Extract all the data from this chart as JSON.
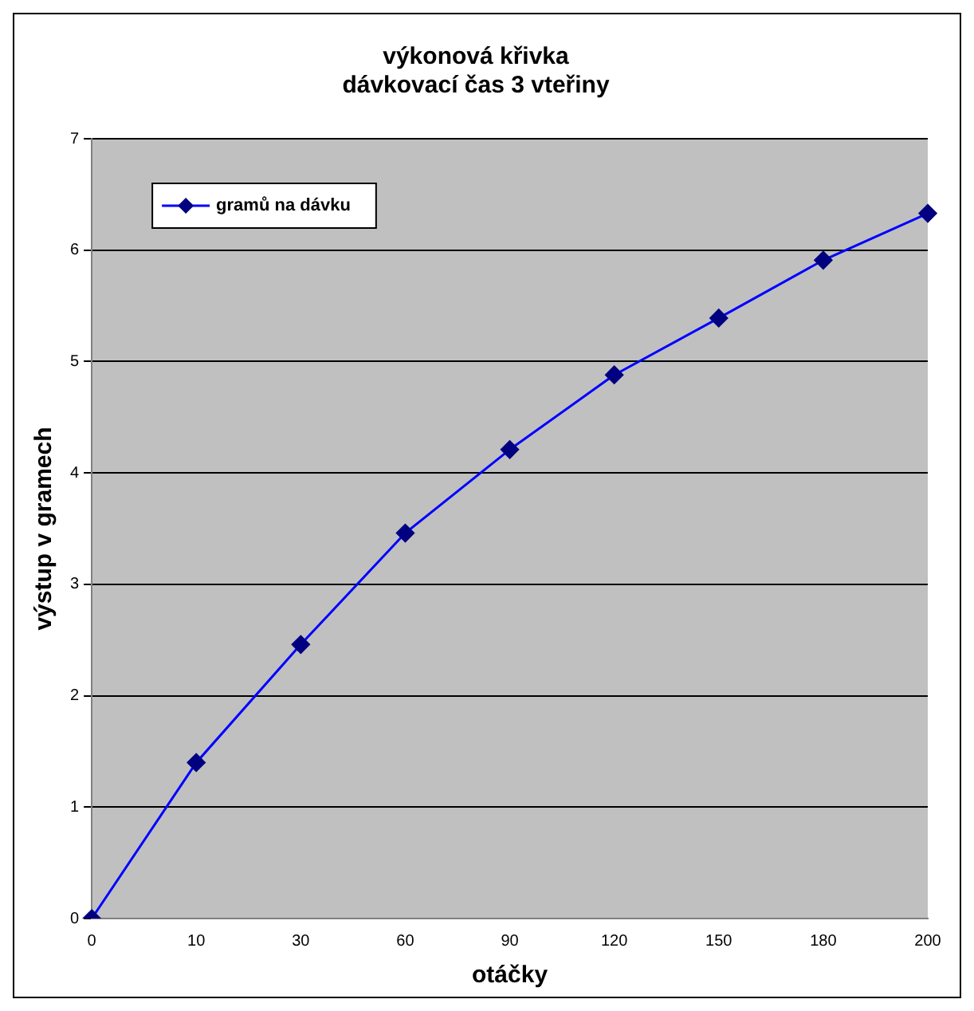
{
  "chart_data": {
    "type": "line",
    "title": "výkonová křivka\ndávkovací čas 3 vteřiny",
    "xlabel": "otáčky",
    "ylabel": "výstup v gramech",
    "categories": [
      "0",
      "10",
      "30",
      "60",
      "90",
      "120",
      "150",
      "180",
      "200"
    ],
    "series": [
      {
        "name": "gramů na dávku",
        "color": "#0000ff",
        "values": [
          0,
          1.4,
          2.46,
          3.46,
          4.21,
          4.88,
          5.39,
          5.91,
          6.33
        ]
      }
    ],
    "ylim": [
      0,
      7
    ],
    "yticks": [
      0,
      1,
      2,
      3,
      4,
      5,
      6,
      7
    ],
    "grid": "y",
    "legend": "top left",
    "marker": "diamond",
    "line_style": "solid"
  }
}
